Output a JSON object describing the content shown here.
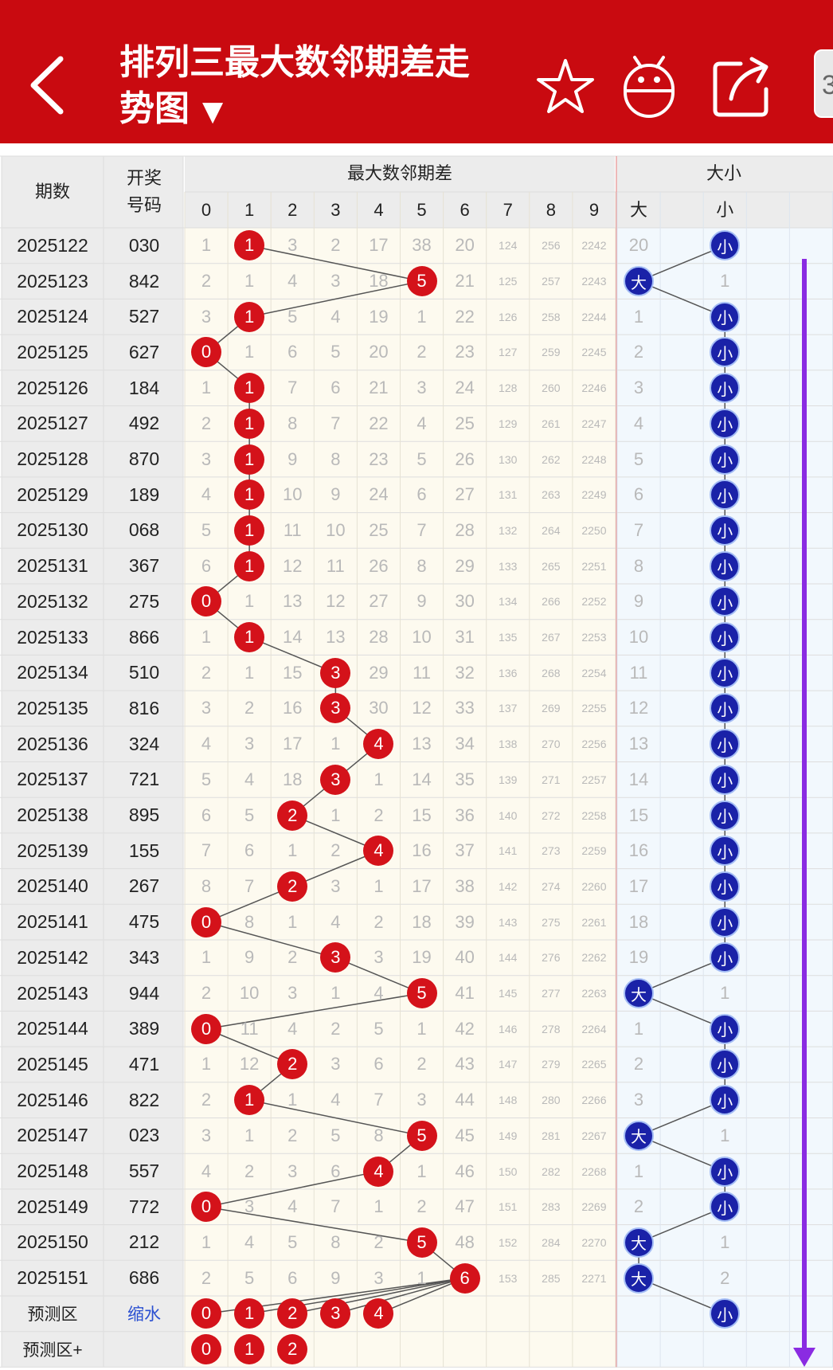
{
  "header": {
    "title_line1": "排列三最大数邻期差走",
    "title_line2": "势图",
    "dropdown_glyph": "▼",
    "side_chip": "3"
  },
  "table": {
    "col_issue": "期数",
    "col_draw_1": "开奖",
    "col_draw_2": "号码",
    "col_diff": "最大数邻期差",
    "col_size": "大小",
    "digits": [
      "0",
      "1",
      "2",
      "3",
      "4",
      "5",
      "6",
      "7",
      "8",
      "9"
    ],
    "size_cols": [
      "大",
      "",
      "小",
      ""
    ]
  },
  "rows": [
    {
      "issue": "2025122",
      "draw": "030",
      "vals": [
        1,
        1,
        3,
        2,
        17,
        38,
        20,
        124,
        256,
        2242
      ],
      "hit": 1,
      "size": "小",
      "big_miss": 20,
      "small_miss": null
    },
    {
      "issue": "2025123",
      "draw": "842",
      "vals": [
        2,
        1,
        4,
        3,
        18,
        5,
        21,
        125,
        257,
        2243
      ],
      "hit": 5,
      "size": "大",
      "big_miss": null,
      "small_miss": 1
    },
    {
      "issue": "2025124",
      "draw": "527",
      "vals": [
        3,
        1,
        5,
        4,
        19,
        1,
        22,
        126,
        258,
        2244
      ],
      "hit": 1,
      "size": "小",
      "big_miss": 1,
      "small_miss": null
    },
    {
      "issue": "2025125",
      "draw": "627",
      "vals": [
        0,
        1,
        6,
        5,
        20,
        2,
        23,
        127,
        259,
        2245
      ],
      "hit": 0,
      "size": "小",
      "big_miss": 2,
      "small_miss": null
    },
    {
      "issue": "2025126",
      "draw": "184",
      "vals": [
        1,
        1,
        7,
        6,
        21,
        3,
        24,
        128,
        260,
        2246
      ],
      "hit": 1,
      "size": "小",
      "big_miss": 3,
      "small_miss": null
    },
    {
      "issue": "2025127",
      "draw": "492",
      "vals": [
        2,
        1,
        8,
        7,
        22,
        4,
        25,
        129,
        261,
        2247
      ],
      "hit": 1,
      "size": "小",
      "big_miss": 4,
      "small_miss": null
    },
    {
      "issue": "2025128",
      "draw": "870",
      "vals": [
        3,
        1,
        9,
        8,
        23,
        5,
        26,
        130,
        262,
        2248
      ],
      "hit": 1,
      "size": "小",
      "big_miss": 5,
      "small_miss": null
    },
    {
      "issue": "2025129",
      "draw": "189",
      "vals": [
        4,
        1,
        10,
        9,
        24,
        6,
        27,
        131,
        263,
        2249
      ],
      "hit": 1,
      "size": "小",
      "big_miss": 6,
      "small_miss": null
    },
    {
      "issue": "2025130",
      "draw": "068",
      "vals": [
        5,
        1,
        11,
        10,
        25,
        7,
        28,
        132,
        264,
        2250
      ],
      "hit": 1,
      "size": "小",
      "big_miss": 7,
      "small_miss": null
    },
    {
      "issue": "2025131",
      "draw": "367",
      "vals": [
        6,
        1,
        12,
        11,
        26,
        8,
        29,
        133,
        265,
        2251
      ],
      "hit": 1,
      "size": "小",
      "big_miss": 8,
      "small_miss": null
    },
    {
      "issue": "2025132",
      "draw": "275",
      "vals": [
        0,
        1,
        13,
        12,
        27,
        9,
        30,
        134,
        266,
        2252
      ],
      "hit": 0,
      "size": "小",
      "big_miss": 9,
      "small_miss": null
    },
    {
      "issue": "2025133",
      "draw": "866",
      "vals": [
        1,
        1,
        14,
        13,
        28,
        10,
        31,
        135,
        267,
        2253
      ],
      "hit": 1,
      "size": "小",
      "big_miss": 10,
      "small_miss": null
    },
    {
      "issue": "2025134",
      "draw": "510",
      "vals": [
        2,
        1,
        15,
        3,
        29,
        11,
        32,
        136,
        268,
        2254
      ],
      "hit": 3,
      "size": "小",
      "big_miss": 11,
      "small_miss": null
    },
    {
      "issue": "2025135",
      "draw": "816",
      "vals": [
        3,
        2,
        16,
        3,
        30,
        12,
        33,
        137,
        269,
        2255
      ],
      "hit": 3,
      "size": "小",
      "big_miss": 12,
      "small_miss": null
    },
    {
      "issue": "2025136",
      "draw": "324",
      "vals": [
        4,
        3,
        17,
        1,
        4,
        13,
        34,
        138,
        270,
        2256
      ],
      "hit": 4,
      "size": "小",
      "big_miss": 13,
      "small_miss": null
    },
    {
      "issue": "2025137",
      "draw": "721",
      "vals": [
        5,
        4,
        18,
        3,
        1,
        14,
        35,
        139,
        271,
        2257
      ],
      "hit": 3,
      "size": "小",
      "big_miss": 14,
      "small_miss": null
    },
    {
      "issue": "2025138",
      "draw": "895",
      "vals": [
        6,
        5,
        2,
        1,
        2,
        15,
        36,
        140,
        272,
        2258
      ],
      "hit": 2,
      "size": "小",
      "big_miss": 15,
      "small_miss": null
    },
    {
      "issue": "2025139",
      "draw": "155",
      "vals": [
        7,
        6,
        1,
        2,
        4,
        16,
        37,
        141,
        273,
        2259
      ],
      "hit": 4,
      "size": "小",
      "big_miss": 16,
      "small_miss": null
    },
    {
      "issue": "2025140",
      "draw": "267",
      "vals": [
        8,
        7,
        2,
        3,
        1,
        17,
        38,
        142,
        274,
        2260
      ],
      "hit": 2,
      "size": "小",
      "big_miss": 17,
      "small_miss": null
    },
    {
      "issue": "2025141",
      "draw": "475",
      "vals": [
        0,
        8,
        1,
        4,
        2,
        18,
        39,
        143,
        275,
        2261
      ],
      "hit": 0,
      "size": "小",
      "big_miss": 18,
      "small_miss": null
    },
    {
      "issue": "2025142",
      "draw": "343",
      "vals": [
        1,
        9,
        2,
        3,
        3,
        19,
        40,
        144,
        276,
        2262
      ],
      "hit": 3,
      "size": "小",
      "big_miss": 19,
      "small_miss": null
    },
    {
      "issue": "2025143",
      "draw": "944",
      "vals": [
        2,
        10,
        3,
        1,
        4,
        5,
        41,
        145,
        277,
        2263
      ],
      "hit": 5,
      "size": "大",
      "big_miss": null,
      "small_miss": 1
    },
    {
      "issue": "2025144",
      "draw": "389",
      "vals": [
        0,
        11,
        4,
        2,
        5,
        1,
        42,
        146,
        278,
        2264
      ],
      "hit": 0,
      "size": "小",
      "big_miss": 1,
      "small_miss": null
    },
    {
      "issue": "2025145",
      "draw": "471",
      "vals": [
        1,
        12,
        2,
        3,
        6,
        2,
        43,
        147,
        279,
        2265
      ],
      "hit": 2,
      "size": "小",
      "big_miss": 2,
      "small_miss": null
    },
    {
      "issue": "2025146",
      "draw": "822",
      "vals": [
        2,
        1,
        1,
        4,
        7,
        3,
        44,
        148,
        280,
        2266
      ],
      "hit": 1,
      "size": "小",
      "big_miss": 3,
      "small_miss": null
    },
    {
      "issue": "2025147",
      "draw": "023",
      "vals": [
        3,
        1,
        2,
        5,
        8,
        5,
        45,
        149,
        281,
        2267
      ],
      "hit": 5,
      "size": "大",
      "big_miss": null,
      "small_miss": 1
    },
    {
      "issue": "2025148",
      "draw": "557",
      "vals": [
        4,
        2,
        3,
        6,
        4,
        1,
        46,
        150,
        282,
        2268
      ],
      "hit": 4,
      "size": "小",
      "big_miss": 1,
      "small_miss": null
    },
    {
      "issue": "2025149",
      "draw": "772",
      "vals": [
        0,
        3,
        4,
        7,
        1,
        2,
        47,
        151,
        283,
        2269
      ],
      "hit": 0,
      "size": "小",
      "big_miss": 2,
      "small_miss": null
    },
    {
      "issue": "2025150",
      "draw": "212",
      "vals": [
        1,
        4,
        5,
        8,
        2,
        5,
        48,
        152,
        284,
        2270
      ],
      "hit": 5,
      "size": "大",
      "big_miss": null,
      "small_miss": 1
    },
    {
      "issue": "2025151",
      "draw": "686",
      "vals": [
        2,
        5,
        6,
        9,
        3,
        1,
        6,
        153,
        285,
        2271
      ],
      "hit": 6,
      "size": "大",
      "big_miss": null,
      "small_miss": 2
    }
  ],
  "predict": {
    "label1": "预测区",
    "link1": "缩水",
    "balls1": [
      "0",
      "1",
      "2",
      "3",
      "4"
    ],
    "size_ball1": "小",
    "label2": "预测区+",
    "balls2": [
      "0",
      "1",
      "2"
    ]
  },
  "colors": {
    "header_red": "#c90a10",
    "ball_red": "#d4121a",
    "ball_blue": "#1a22a8",
    "scroll_arrow": "#8a2be2",
    "left_bg": "#ececec",
    "diff_bg": "#fdfaef",
    "size_bg": "#f2f8fd"
  }
}
